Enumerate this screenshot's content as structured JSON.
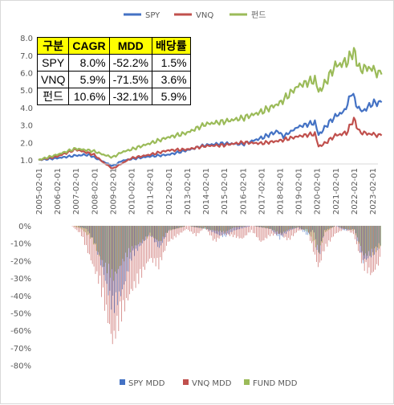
{
  "chart_data": [
    {
      "type": "line",
      "title": "",
      "legend": [
        "SPY",
        "VNQ",
        "펀드"
      ],
      "legend_position": "top",
      "x": [
        "2005-02-01",
        "2006-02-01",
        "2007-02-01",
        "2008-02-01",
        "2009-02-01",
        "2010-02-01",
        "2011-02-01",
        "2012-02-01",
        "2013-02-01",
        "2014-02-01",
        "2015-02-01",
        "2016-02-01",
        "2017-02-01",
        "2018-02-01",
        "2019-02-01",
        "2020-02-01",
        "2021-02-01",
        "2022-02-01",
        "2023-02-01"
      ],
      "ylim": [
        0.5,
        8.0
      ],
      "yticks": [
        "1.0",
        "2.0",
        "3.0",
        "4.0",
        "5.0",
        "6.0",
        "7.0",
        "8.0"
      ],
      "series": [
        {
          "name": "SPY",
          "color": "#4472c4",
          "points": [
            [
              0,
              1.0
            ],
            [
              1,
              1.1
            ],
            [
              2,
              1.25
            ],
            [
              2.7,
              1.3
            ],
            [
              3,
              1.15
            ],
            [
              3.5,
              0.9
            ],
            [
              4.0,
              0.65
            ],
            [
              4.5,
              0.95
            ],
            [
              5,
              1.05
            ],
            [
              6,
              1.2
            ],
            [
              7,
              1.3
            ],
            [
              8,
              1.55
            ],
            [
              9,
              1.85
            ],
            [
              10,
              1.95
            ],
            [
              11,
              1.9
            ],
            [
              12,
              2.25
            ],
            [
              12.9,
              2.65
            ],
            [
              13.2,
              2.35
            ],
            [
              14,
              2.9
            ],
            [
              14.9,
              3.15
            ],
            [
              15.1,
              2.4
            ],
            [
              15.5,
              2.95
            ],
            [
              16,
              3.5
            ],
            [
              16.5,
              3.8
            ],
            [
              16.9,
              4.9
            ],
            [
              17.2,
              4.0
            ],
            [
              17.5,
              3.8
            ],
            [
              18,
              4.25
            ],
            [
              18.5,
              4.3
            ]
          ]
        },
        {
          "name": "VNQ",
          "color": "#c0504d",
          "points": [
            [
              0,
              1.0
            ],
            [
              1,
              1.2
            ],
            [
              2,
              1.6
            ],
            [
              3,
              1.3
            ],
            [
              3.5,
              0.85
            ],
            [
              4.0,
              0.5
            ],
            [
              4.5,
              0.8
            ],
            [
              5,
              1.1
            ],
            [
              6,
              1.3
            ],
            [
              7,
              1.55
            ],
            [
              8,
              1.6
            ],
            [
              9,
              1.8
            ],
            [
              10,
              1.85
            ],
            [
              11,
              2.0
            ],
            [
              12,
              1.95
            ],
            [
              13,
              2.1
            ],
            [
              14,
              2.35
            ],
            [
              14.9,
              2.5
            ],
            [
              15.1,
              1.75
            ],
            [
              15.5,
              2.0
            ],
            [
              16,
              2.4
            ],
            [
              16.6,
              2.55
            ],
            [
              17.0,
              3.35
            ],
            [
              17.3,
              2.6
            ],
            [
              17.8,
              2.5
            ],
            [
              18.5,
              2.4
            ]
          ]
        },
        {
          "name": "펀드",
          "color": "#9bbb59",
          "points": [
            [
              0,
              1.0
            ],
            [
              1,
              1.3
            ],
            [
              2,
              1.65
            ],
            [
              3,
              1.5
            ],
            [
              3.5,
              1.3
            ],
            [
              4.0,
              1.15
            ],
            [
              4.5,
              1.45
            ],
            [
              5,
              1.6
            ],
            [
              6,
              1.95
            ],
            [
              7,
              2.3
            ],
            [
              8,
              2.55
            ],
            [
              9,
              3.05
            ],
            [
              10,
              3.2
            ],
            [
              11,
              3.4
            ],
            [
              12,
              3.75
            ],
            [
              13,
              4.25
            ],
            [
              14,
              5.25
            ],
            [
              14.9,
              5.6
            ],
            [
              15.1,
              4.85
            ],
            [
              15.5,
              5.5
            ],
            [
              16,
              6.4
            ],
            [
              16.6,
              6.6
            ],
            [
              17.0,
              7.25
            ],
            [
              17.3,
              6.2
            ],
            [
              17.8,
              6.3
            ],
            [
              18.5,
              5.9
            ]
          ]
        }
      ]
    },
    {
      "type": "bar",
      "title": "",
      "legend": [
        "SPY MDD",
        "VNQ MDD",
        "FUND MDD"
      ],
      "legend_position": "bottom",
      "ylim": [
        -80,
        0
      ],
      "yticks": [
        "0%",
        "-10%",
        "-20%",
        "-30%",
        "-40%",
        "-50%",
        "-60%",
        "-70%",
        "-80%"
      ],
      "series": [
        {
          "name": "SPY MDD",
          "color": "#4472c4",
          "drawdown_points": [
            [
              0,
              0
            ],
            [
              2.0,
              0
            ],
            [
              2.6,
              -2
            ],
            [
              3.0,
              -10
            ],
            [
              3.5,
              -30
            ],
            [
              4.0,
              -52
            ],
            [
              4.5,
              -40
            ],
            [
              5.0,
              -20
            ],
            [
              5.5,
              -12
            ],
            [
              6.0,
              -5
            ],
            [
              6.5,
              -14
            ],
            [
              7.0,
              -3
            ],
            [
              8.0,
              0
            ],
            [
              9.0,
              -2
            ],
            [
              10.0,
              -7
            ],
            [
              10.5,
              -3
            ],
            [
              11.5,
              0
            ],
            [
              12.5,
              -2
            ],
            [
              13.0,
              -8
            ],
            [
              13.5,
              -3
            ],
            [
              14.0,
              -1
            ],
            [
              14.5,
              -6
            ],
            [
              14.8,
              -2
            ],
            [
              15.1,
              -20
            ],
            [
              15.4,
              -3
            ],
            [
              16.0,
              0
            ],
            [
              16.5,
              -3
            ],
            [
              17.0,
              -2
            ],
            [
              17.5,
              -22
            ],
            [
              18.0,
              -18
            ],
            [
              18.5,
              -10
            ]
          ]
        },
        {
          "name": "VNQ MDD",
          "color": "#c0504d",
          "drawdown_points": [
            [
              0,
              0
            ],
            [
              1.8,
              0
            ],
            [
              2.3,
              -5
            ],
            [
              2.8,
              -20
            ],
            [
              3.3,
              -35
            ],
            [
              3.7,
              -55
            ],
            [
              4.0,
              -71.5
            ],
            [
              4.5,
              -55
            ],
            [
              5.0,
              -40
            ],
            [
              5.5,
              -32
            ],
            [
              6.0,
              -20
            ],
            [
              6.5,
              -25
            ],
            [
              7.0,
              -10
            ],
            [
              8.0,
              -2
            ],
            [
              8.5,
              -6
            ],
            [
              9.0,
              -1
            ],
            [
              9.5,
              -10
            ],
            [
              10.0,
              -5
            ],
            [
              11.0,
              -8
            ],
            [
              11.5,
              -3
            ],
            [
              12.0,
              -10
            ],
            [
              12.5,
              -6
            ],
            [
              13.0,
              -5
            ],
            [
              13.5,
              -9
            ],
            [
              14.0,
              -3
            ],
            [
              14.5,
              -2
            ],
            [
              15.1,
              -26
            ],
            [
              15.4,
              -15
            ],
            [
              16.0,
              -5
            ],
            [
              16.5,
              -2
            ],
            [
              17.0,
              -5
            ],
            [
              17.5,
              -25
            ],
            [
              18.0,
              -30
            ],
            [
              18.5,
              -20
            ]
          ]
        },
        {
          "name": "FUND MDD",
          "color": "#9bbb59",
          "drawdown_points": [
            [
              0,
              0
            ],
            [
              1.8,
              0
            ],
            [
              2.3,
              -2
            ],
            [
              2.8,
              -8
            ],
            [
              3.3,
              -20
            ],
            [
              3.7,
              -28
            ],
            [
              4.0,
              -32
            ],
            [
              4.5,
              -22
            ],
            [
              5.0,
              -14
            ],
            [
              5.5,
              -10
            ],
            [
              6.0,
              -6
            ],
            [
              6.5,
              -10
            ],
            [
              7.0,
              -3
            ],
            [
              8.0,
              0
            ],
            [
              9.0,
              -2
            ],
            [
              10.0,
              -4
            ],
            [
              10.5,
              -1
            ],
            [
              11.5,
              0
            ],
            [
              12.5,
              -2
            ],
            [
              13.0,
              -5
            ],
            [
              13.5,
              -2
            ],
            [
              14.0,
              -1
            ],
            [
              14.5,
              -4
            ],
            [
              15.1,
              -16
            ],
            [
              15.4,
              -4
            ],
            [
              16.0,
              0
            ],
            [
              16.5,
              -2
            ],
            [
              17.0,
              -3
            ],
            [
              17.5,
              -18
            ],
            [
              18.0,
              -17
            ],
            [
              18.5,
              -12
            ]
          ]
        }
      ]
    }
  ],
  "table": {
    "headers": [
      "구분",
      "CAGR",
      "MDD",
      "배당률"
    ],
    "rows": [
      [
        "SPY",
        "8.0%",
        "-52.2%",
        "1.5%"
      ],
      [
        "VNQ",
        "5.9%",
        "-71.5%",
        "3.6%"
      ],
      [
        "펀드",
        "10.6%",
        "-32.1%",
        "5.9%"
      ]
    ]
  }
}
